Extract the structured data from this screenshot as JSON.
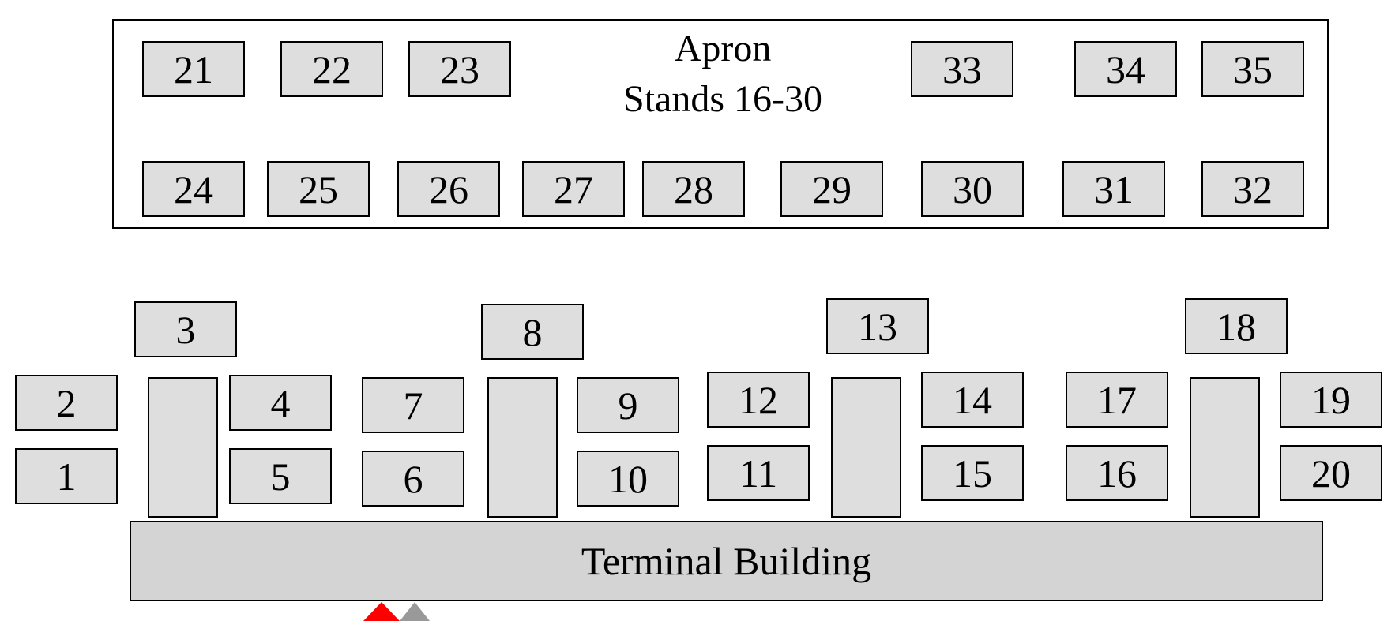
{
  "apron": {
    "title": "Apron",
    "subtitle": "Stands 16-30"
  },
  "terminal": {
    "label": "Terminal Building"
  },
  "stands": {
    "s1": "1",
    "s2": "2",
    "s3": "3",
    "s4": "4",
    "s5": "5",
    "s6": "6",
    "s7": "7",
    "s8": "8",
    "s9": "9",
    "s10": "10",
    "s11": "11",
    "s12": "12",
    "s13": "13",
    "s14": "14",
    "s15": "15",
    "s16": "16",
    "s17": "17",
    "s18": "18",
    "s19": "19",
    "s20": "20",
    "s21": "21",
    "s22": "22",
    "s23": "23",
    "s24": "24",
    "s25": "25",
    "s26": "26",
    "s27": "27",
    "s28": "28",
    "s29": "29",
    "s30": "30",
    "s31": "31",
    "s32": "32",
    "s33": "33",
    "s34": "34",
    "s35": "35"
  },
  "colors": {
    "stand_fill": "#dedede",
    "terminal_fill": "#d4d4d4",
    "marker_primary": "#ff0000",
    "marker_secondary": "#999999"
  },
  "icons": {
    "marker_primary": "triangle-marker-icon",
    "marker_secondary": "triangle-marker-icon"
  }
}
